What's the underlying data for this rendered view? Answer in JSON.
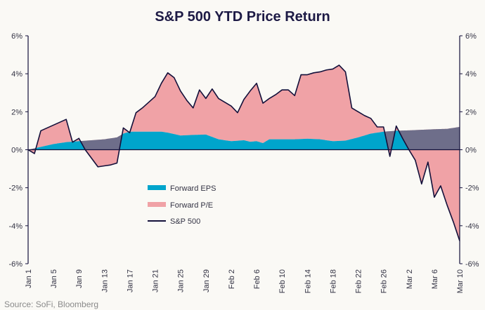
{
  "chart_data": {
    "type": "area",
    "title": "S&P 500 YTD Price Return",
    "source": "Source: SoFi, Bloomberg",
    "xlabel": "",
    "ylabel": "",
    "ylim": [
      -6,
      6
    ],
    "y_ticks": [
      "6%",
      "4%",
      "2%",
      "0%",
      "-2%",
      "-4%",
      "-6%"
    ],
    "y_tick_values": [
      6,
      4,
      2,
      0,
      -2,
      -4,
      -6
    ],
    "x_tick_labels": [
      "Jan 1",
      "Jan 5",
      "Jan 9",
      "Jan 13",
      "Jan 17",
      "Jan 21",
      "Jan 25",
      "Jan 29",
      "Feb 2",
      "Feb 6",
      "Feb 10",
      "Feb 14",
      "Feb 18",
      "Feb 22",
      "Feb 26",
      "Mar 2",
      "Mar 6",
      "Mar 10"
    ],
    "x_tick_days": [
      0,
      4,
      8,
      12,
      16,
      20,
      24,
      28,
      32,
      36,
      40,
      44,
      48,
      52,
      56,
      60,
      64,
      68
    ],
    "x_range_days": [
      0,
      68
    ],
    "colors": {
      "eps": "#00a5cc",
      "pe": "#f0a2a6",
      "sp500": "#13103a",
      "overlap": "#6e6e8a"
    },
    "legend": [
      {
        "key": "eps",
        "label": "Forward EPS"
      },
      {
        "key": "pe",
        "label": "Forward P/E"
      },
      {
        "key": "sp500",
        "label": "S&P 500"
      }
    ],
    "series": [
      {
        "name": "S&P 500",
        "x": [
          0,
          1,
          2,
          6,
          7,
          8,
          9,
          11,
          12,
          13,
          14,
          15,
          16,
          17,
          18,
          19,
          20,
          21,
          22,
          23,
          24,
          25,
          26,
          27,
          28,
          29,
          30,
          32,
          33,
          34,
          35,
          36,
          37,
          38,
          39,
          40,
          41,
          42,
          43,
          44,
          45,
          46,
          47,
          48,
          49,
          50,
          51,
          52,
          53,
          54,
          55,
          56,
          57,
          58,
          59,
          60,
          61,
          62,
          63,
          64,
          65,
          66,
          67,
          68
        ],
        "values": [
          0.0,
          -0.2,
          1.0,
          1.6,
          0.4,
          0.6,
          0.0,
          -0.9,
          -0.85,
          -0.8,
          -0.7,
          1.15,
          0.9,
          1.95,
          2.2,
          2.5,
          2.8,
          3.5,
          4.05,
          3.8,
          3.1,
          2.6,
          2.2,
          3.15,
          2.7,
          3.2,
          2.7,
          2.3,
          1.95,
          2.65,
          3.1,
          3.5,
          2.45,
          2.7,
          2.9,
          3.15,
          3.15,
          2.85,
          3.95,
          3.95,
          4.05,
          4.1,
          4.2,
          4.25,
          4.45,
          4.1,
          2.2,
          2.0,
          1.8,
          1.65,
          1.2,
          1.2,
          -0.35,
          1.25,
          0.6,
          0.0,
          -0.55,
          -1.8,
          -0.65,
          -2.5,
          -1.9,
          -2.9,
          -3.8,
          -4.8
        ]
      },
      {
        "name": "Forward EPS",
        "x": [
          0,
          2,
          4,
          6,
          8,
          10,
          12,
          14,
          15,
          16,
          18,
          20,
          21,
          22,
          24,
          26,
          28,
          30,
          32,
          34,
          35,
          36,
          37,
          38,
          40,
          42,
          44,
          46,
          48,
          50,
          52,
          54,
          56,
          58,
          60,
          62,
          64,
          66,
          68
        ],
        "values": [
          0.0,
          0.15,
          0.3,
          0.4,
          0.45,
          0.5,
          0.55,
          0.65,
          0.85,
          0.95,
          0.95,
          0.95,
          0.95,
          0.9,
          0.75,
          0.78,
          0.8,
          0.55,
          0.45,
          0.5,
          0.42,
          0.45,
          0.35,
          0.55,
          0.55,
          0.55,
          0.58,
          0.55,
          0.45,
          0.48,
          0.65,
          0.85,
          0.95,
          1.0,
          1.02,
          1.05,
          1.08,
          1.1,
          1.2
        ]
      },
      {
        "name": "Forward P/E",
        "note": "rendered as the band between the Forward EPS curve and the S&P 500 line"
      }
    ]
  }
}
